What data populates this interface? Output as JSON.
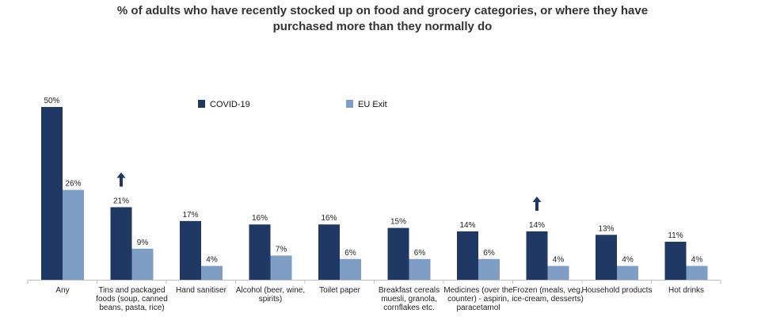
{
  "chart_data": {
    "type": "bar",
    "title_lines": [
      "% of adults who have recently stocked up on food and grocery categories, or where they have",
      "purchased more than they normally do"
    ],
    "categories": [
      [
        "Any"
      ],
      [
        "Tins and packaged",
        "foods (soup, canned",
        "beans, pasta, rice)"
      ],
      [
        "Hand sanitiser"
      ],
      [
        "Alcohol (beer, wine,",
        "spirits)"
      ],
      [
        "Toilet paper"
      ],
      [
        "Breakfast cereals",
        "muesli, granola,",
        "cornflakes etc."
      ],
      [
        "Medicines (over the",
        "counter) - aspirin,",
        "paracetamol"
      ],
      [
        "Frozen (meals, veg,",
        "ice-cream, desserts)"
      ],
      [
        "Household products"
      ],
      [
        "Hot drinks"
      ]
    ],
    "series": [
      {
        "name": "COVID-19",
        "color": "#1f3864",
        "values": [
          50,
          21,
          17,
          16,
          16,
          15,
          14,
          14,
          13,
          11
        ],
        "labels": [
          "50%",
          "21%",
          "17%",
          "16%",
          "16%",
          "15%",
          "14%",
          "14%",
          "13%",
          "11%"
        ]
      },
      {
        "name": "EU Exit",
        "color": "#7f9ec6",
        "values": [
          26,
          9,
          4,
          7,
          6,
          6,
          6,
          4,
          4,
          4
        ],
        "labels": [
          "26%",
          "9%",
          "4%",
          "7%",
          "6%",
          "6%",
          "6%",
          "4%",
          "4%",
          "4%"
        ]
      }
    ],
    "up_arrows_on": [
      1,
      7
    ],
    "arrow_icon": "up-arrow-icon",
    "ylim": [
      0,
      50
    ],
    "legend": "top-center",
    "grid": false
  }
}
